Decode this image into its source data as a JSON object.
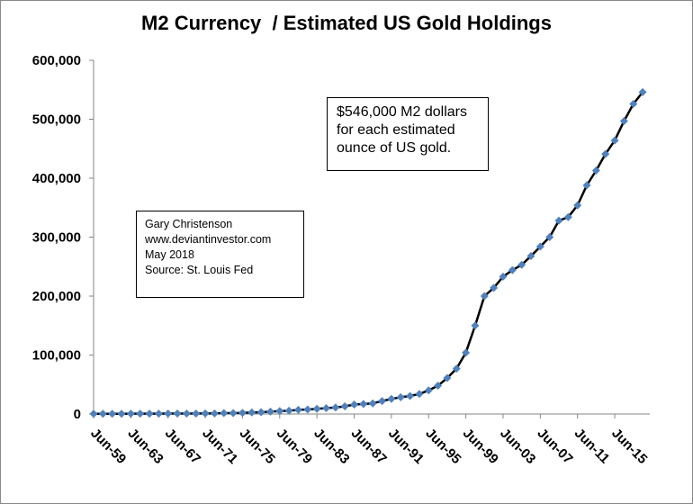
{
  "chart_data": {
    "type": "line",
    "title": "M2 Currency  / Estimated US Gold Holdings",
    "xlabel": "",
    "ylabel": "",
    "ylim": [
      0,
      600000
    ],
    "yticks": [
      "0",
      "100,000",
      "200,000",
      "300,000",
      "400,000",
      "500,000",
      "600,000"
    ],
    "xticks": [
      "Jun-59",
      "Jun-63",
      "Jun-67",
      "Jun-71",
      "Jun-75",
      "Jun-79",
      "Jun-83",
      "Jun-87",
      "Jun-91",
      "Jun-95",
      "Jun-99",
      "Jun-03",
      "Jun-07",
      "Jun-11",
      "Jun-15"
    ],
    "grid": false,
    "legend": "none",
    "line_color": "#000000",
    "marker_color": "#4F81BD",
    "marker": "diamond",
    "x": [
      1959,
      1960,
      1961,
      1962,
      1963,
      1964,
      1965,
      1966,
      1967,
      1968,
      1969,
      1970,
      1971,
      1972,
      1973,
      1974,
      1975,
      1976,
      1977,
      1978,
      1979,
      1980,
      1981,
      1982,
      1983,
      1984,
      1985,
      1986,
      1987,
      1988,
      1989,
      1990,
      1991,
      1992,
      1993,
      1994,
      1995,
      1996,
      1997,
      1998,
      1999,
      2000,
      2001,
      2002,
      2003,
      2004,
      2005,
      2006,
      2007,
      2008,
      2009,
      2010,
      2011,
      2012,
      2013,
      2014,
      2015,
      2016,
      2017,
      2018
    ],
    "values": [
      300,
      350,
      400,
      450,
      500,
      550,
      600,
      650,
      700,
      750,
      800,
      850,
      900,
      1000,
      1500,
      1500,
      2000,
      2600,
      3000,
      4000,
      5000,
      5600,
      7000,
      7600,
      8700,
      10000,
      11000,
      13000,
      16000,
      17000,
      18000,
      22000,
      25500,
      28500,
      30500,
      34000,
      40000,
      48000,
      61000,
      77000,
      104000,
      150000,
      200000,
      214000,
      233000,
      244000,
      253000,
      268000,
      284000,
      300000,
      328000,
      334000,
      354000,
      388000,
      413000,
      441000,
      464000,
      497000,
      526000,
      546000
    ],
    "annotations": [
      {
        "lines": [
          "$546,000 M2 dollars",
          "for each estimated",
          "ounce of US gold."
        ]
      },
      {
        "lines": [
          "Gary Christenson",
          "www.deviantinvestor.com",
          "May 2018",
          "Source: St. Louis Fed"
        ]
      }
    ]
  }
}
